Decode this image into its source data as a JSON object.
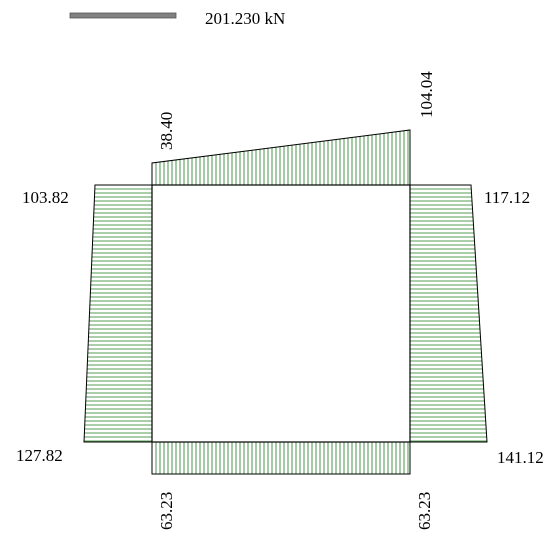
{
  "legend": {
    "scale_label": "201.230 kN",
    "colors": {
      "hatch": "#1d7a1d",
      "legend_bar": "#808080",
      "outline": "#000000"
    }
  },
  "diagram": {
    "top_beam": {
      "left_value": "38.40",
      "right_value": "104.04"
    },
    "left_column": {
      "top_value": "103.82",
      "bottom_value": "127.82"
    },
    "right_column": {
      "top_value": "117.12",
      "bottom_value": "141.12"
    },
    "bottom_beam": {
      "left_value": "63.23",
      "right_value": "63.23"
    }
  }
}
